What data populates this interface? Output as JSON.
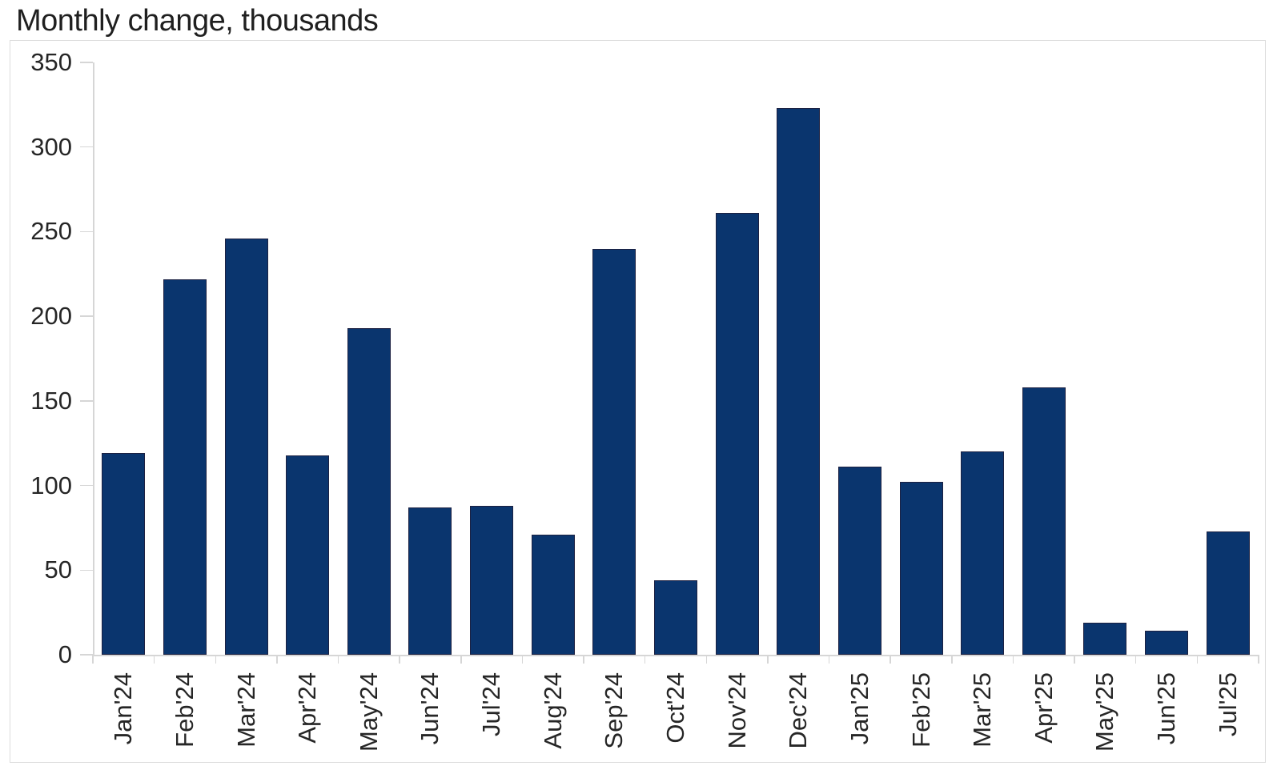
{
  "title": "Monthly change, thousands",
  "chart_data": {
    "type": "bar",
    "title": "Monthly change, thousands",
    "categories": [
      "Jan'24",
      "Feb'24",
      "Mar'24",
      "Apr'24",
      "May'24",
      "Jun'24",
      "Jul'24",
      "Aug'24",
      "Sep'24",
      "Oct'24",
      "Nov'24",
      "Dec'24",
      "Jan'25",
      "Feb'25",
      "Mar'25",
      "Apr'25",
      "May'25",
      "Jun'25",
      "Jul'25"
    ],
    "values": [
      119,
      222,
      246,
      118,
      193,
      87,
      88,
      71,
      240,
      44,
      261,
      323,
      111,
      102,
      120,
      158,
      19,
      14,
      73
    ],
    "xlabel": "",
    "ylabel": "",
    "ylim": [
      0,
      350
    ],
    "yticks": [
      0,
      50,
      100,
      150,
      200,
      250,
      300,
      350
    ],
    "grid": false,
    "legend": false,
    "colors": {
      "bar_fill": "#0a356e",
      "bar_border": "#1c2142",
      "axis": "#d6d6d6",
      "frame": "#dcdcdc",
      "text": "#262626"
    }
  }
}
